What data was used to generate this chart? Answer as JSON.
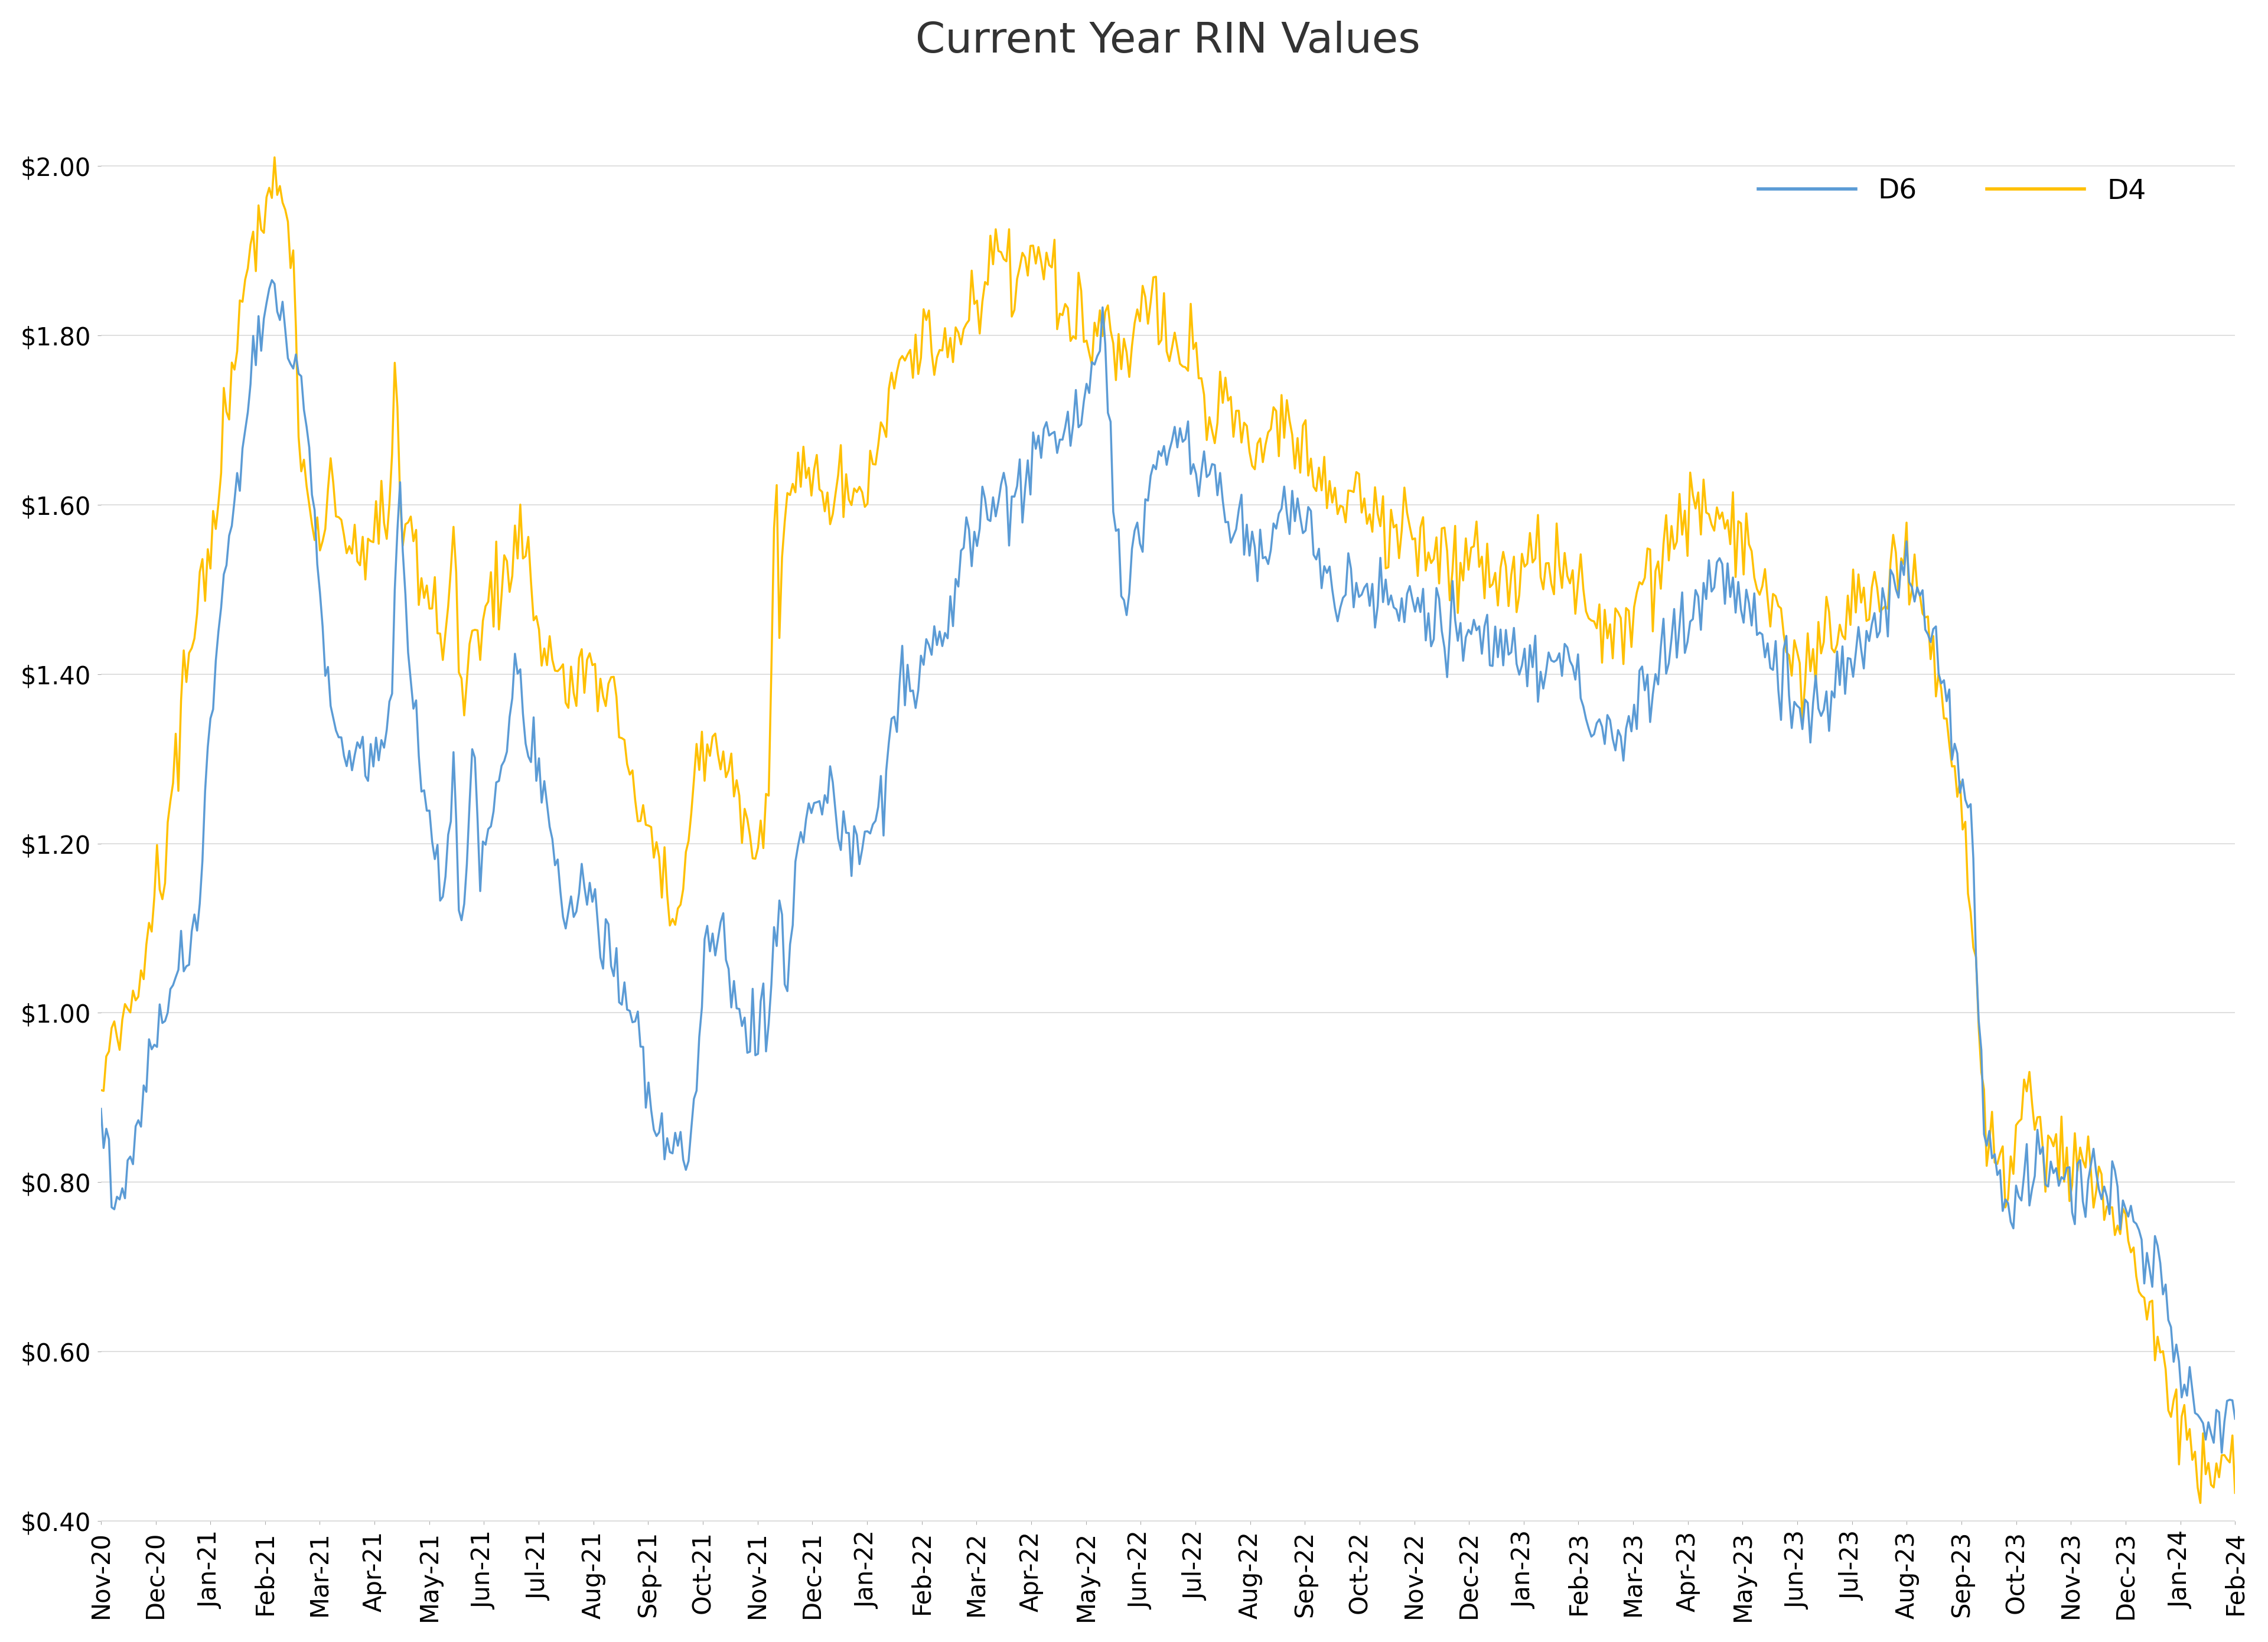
{
  "title": "Current Year RIN Values",
  "title_fontsize": 52,
  "line_d6_color": "#5B9BD5",
  "line_d4_color": "#FFC000",
  "line_width": 2.5,
  "ylim": [
    0.4,
    2.1
  ],
  "yticks": [
    0.4,
    0.6,
    0.8,
    1.0,
    1.2,
    1.4,
    1.6,
    1.8,
    2.0
  ],
  "background_color": "#FFFFFF",
  "grid_color": "#D9D9D9",
  "legend_labels": [
    "D6",
    "D4"
  ],
  "legend_fontsize": 34,
  "tick_fontsize": 30,
  "x_tick_labels": [
    "Nov-20",
    "Dec-20",
    "Jan-21",
    "Feb-21",
    "Mar-21",
    "Apr-21",
    "May-21",
    "Jun-21",
    "Jul-21",
    "Aug-21",
    "Sep-21",
    "Oct-21",
    "Nov-21",
    "Dec-21",
    "Jan-22",
    "Feb-22",
    "Mar-22",
    "Apr-22",
    "May-22",
    "Jun-22",
    "Jul-22",
    "Aug-22",
    "Sep-22",
    "Oct-22",
    "Nov-22",
    "Dec-22",
    "Jan-23",
    "Feb-23",
    "Mar-23",
    "Apr-23",
    "May-23",
    "Jun-23",
    "Jul-23",
    "Aug-23",
    "Sep-23",
    "Oct-23",
    "Nov-23",
    "Dec-23",
    "Jan-24",
    "Feb-24"
  ],
  "d6_waypoints": [
    [
      0,
      0.88
    ],
    [
      3,
      0.78
    ],
    [
      6,
      0.82
    ],
    [
      9,
      0.95
    ],
    [
      12,
      1.0
    ],
    [
      15,
      1.05
    ],
    [
      18,
      1.1
    ],
    [
      20,
      1.3
    ],
    [
      22,
      1.45
    ],
    [
      24,
      1.55
    ],
    [
      26,
      1.65
    ],
    [
      28,
      1.75
    ],
    [
      30,
      1.82
    ],
    [
      32,
      1.85
    ],
    [
      34,
      1.82
    ],
    [
      36,
      1.78
    ],
    [
      38,
      1.72
    ],
    [
      40,
      1.58
    ],
    [
      42,
      1.42
    ],
    [
      44,
      1.32
    ],
    [
      46,
      1.3
    ],
    [
      48,
      1.35
    ],
    [
      50,
      1.28
    ],
    [
      52,
      1.32
    ],
    [
      54,
      1.35
    ],
    [
      56,
      1.65
    ],
    [
      57,
      1.48
    ],
    [
      58,
      1.38
    ],
    [
      60,
      1.28
    ],
    [
      62,
      1.18
    ],
    [
      64,
      1.15
    ],
    [
      66,
      1.3
    ],
    [
      67,
      1.14
    ],
    [
      68,
      1.12
    ],
    [
      70,
      1.3
    ],
    [
      71,
      1.18
    ],
    [
      72,
      1.22
    ],
    [
      74,
      1.25
    ],
    [
      76,
      1.35
    ],
    [
      78,
      1.4
    ],
    [
      80,
      1.32
    ],
    [
      82,
      1.28
    ],
    [
      84,
      1.22
    ],
    [
      86,
      1.15
    ],
    [
      88,
      1.1
    ],
    [
      90,
      1.15
    ],
    [
      92,
      1.12
    ],
    [
      94,
      1.08
    ],
    [
      96,
      1.05
    ],
    [
      98,
      1.02
    ],
    [
      100,
      0.98
    ],
    [
      102,
      0.93
    ],
    [
      104,
      0.87
    ],
    [
      106,
      0.85
    ],
    [
      108,
      0.83
    ],
    [
      110,
      0.83
    ],
    [
      112,
      0.98
    ],
    [
      114,
      1.1
    ],
    [
      116,
      1.1
    ],
    [
      118,
      1.05
    ],
    [
      120,
      1.0
    ],
    [
      122,
      0.98
    ],
    [
      124,
      0.97
    ],
    [
      125,
      1.0
    ],
    [
      127,
      1.15
    ],
    [
      128,
      1.0
    ],
    [
      130,
      1.2
    ],
    [
      132,
      1.22
    ],
    [
      134,
      1.25
    ],
    [
      136,
      1.25
    ],
    [
      138,
      1.22
    ],
    [
      140,
      1.2
    ],
    [
      142,
      1.2
    ],
    [
      144,
      1.22
    ],
    [
      146,
      1.25
    ],
    [
      148,
      1.35
    ],
    [
      150,
      1.4
    ],
    [
      152,
      1.38
    ],
    [
      154,
      1.4
    ],
    [
      156,
      1.42
    ],
    [
      158,
      1.45
    ],
    [
      160,
      1.5
    ],
    [
      162,
      1.55
    ],
    [
      164,
      1.58
    ],
    [
      166,
      1.6
    ],
    [
      168,
      1.62
    ],
    [
      170,
      1.6
    ],
    [
      172,
      1.62
    ],
    [
      174,
      1.65
    ],
    [
      176,
      1.67
    ],
    [
      178,
      1.68
    ],
    [
      180,
      1.68
    ],
    [
      182,
      1.7
    ],
    [
      184,
      1.72
    ],
    [
      186,
      1.75
    ],
    [
      188,
      1.8
    ],
    [
      189,
      1.62
    ],
    [
      190,
      1.55
    ],
    [
      191,
      1.52
    ],
    [
      192,
      1.5
    ],
    [
      193,
      1.55
    ],
    [
      194,
      1.58
    ],
    [
      195,
      1.6
    ],
    [
      196,
      1.62
    ],
    [
      198,
      1.65
    ],
    [
      200,
      1.67
    ],
    [
      202,
      1.68
    ],
    [
      204,
      1.68
    ],
    [
      206,
      1.65
    ],
    [
      208,
      1.62
    ],
    [
      210,
      1.6
    ],
    [
      212,
      1.58
    ],
    [
      214,
      1.57
    ],
    [
      216,
      1.55
    ],
    [
      218,
      1.55
    ],
    [
      220,
      1.58
    ],
    [
      222,
      1.6
    ],
    [
      224,
      1.58
    ],
    [
      226,
      1.55
    ],
    [
      228,
      1.52
    ],
    [
      230,
      1.52
    ],
    [
      232,
      1.5
    ],
    [
      234,
      1.5
    ],
    [
      236,
      1.5
    ],
    [
      238,
      1.48
    ],
    [
      240,
      1.48
    ],
    [
      242,
      1.48
    ],
    [
      244,
      1.48
    ],
    [
      246,
      1.48
    ],
    [
      248,
      1.48
    ],
    [
      250,
      1.47
    ],
    [
      252,
      1.46
    ],
    [
      254,
      1.45
    ],
    [
      256,
      1.45
    ],
    [
      258,
      1.44
    ],
    [
      260,
      1.43
    ],
    [
      262,
      1.42
    ],
    [
      264,
      1.42
    ],
    [
      266,
      1.42
    ],
    [
      268,
      1.42
    ],
    [
      270,
      1.42
    ],
    [
      272,
      1.42
    ],
    [
      274,
      1.42
    ],
    [
      276,
      1.38
    ],
    [
      278,
      1.36
    ],
    [
      280,
      1.34
    ],
    [
      282,
      1.33
    ],
    [
      284,
      1.32
    ],
    [
      286,
      1.35
    ],
    [
      288,
      1.38
    ],
    [
      290,
      1.4
    ],
    [
      292,
      1.42
    ],
    [
      294,
      1.44
    ],
    [
      296,
      1.46
    ],
    [
      298,
      1.48
    ],
    [
      300,
      1.5
    ],
    [
      302,
      1.52
    ],
    [
      304,
      1.52
    ],
    [
      306,
      1.5
    ],
    [
      308,
      1.48
    ],
    [
      310,
      1.45
    ],
    [
      312,
      1.42
    ],
    [
      314,
      1.4
    ],
    [
      316,
      1.38
    ],
    [
      318,
      1.36
    ],
    [
      320,
      1.35
    ],
    [
      322,
      1.36
    ],
    [
      324,
      1.38
    ],
    [
      326,
      1.4
    ],
    [
      328,
      1.42
    ],
    [
      330,
      1.45
    ],
    [
      332,
      1.48
    ],
    [
      334,
      1.5
    ],
    [
      336,
      1.52
    ],
    [
      338,
      1.5
    ],
    [
      340,
      1.48
    ],
    [
      342,
      1.45
    ],
    [
      344,
      1.4
    ],
    [
      346,
      1.35
    ],
    [
      348,
      1.3
    ],
    [
      350,
      1.2
    ],
    [
      351,
      1.0
    ],
    [
      352,
      0.88
    ],
    [
      354,
      0.82
    ],
    [
      356,
      0.78
    ],
    [
      358,
      0.78
    ],
    [
      360,
      0.82
    ],
    [
      362,
      0.83
    ],
    [
      364,
      0.82
    ],
    [
      366,
      0.8
    ],
    [
      368,
      0.8
    ],
    [
      370,
      0.8
    ],
    [
      372,
      0.8
    ],
    [
      374,
      0.8
    ],
    [
      376,
      0.78
    ],
    [
      378,
      0.76
    ],
    [
      380,
      0.74
    ],
    [
      382,
      0.72
    ],
    [
      384,
      0.7
    ],
    [
      386,
      0.65
    ],
    [
      388,
      0.6
    ],
    [
      390,
      0.55
    ],
    [
      392,
      0.52
    ],
    [
      394,
      0.52
    ],
    [
      396,
      0.52
    ],
    [
      399,
      0.52
    ]
  ],
  "d4_waypoints": [
    [
      0,
      0.93
    ],
    [
      2,
      0.95
    ],
    [
      4,
      1.0
    ],
    [
      6,
      1.02
    ],
    [
      8,
      1.05
    ],
    [
      10,
      1.15
    ],
    [
      12,
      1.2
    ],
    [
      14,
      1.3
    ],
    [
      16,
      1.42
    ],
    [
      18,
      1.48
    ],
    [
      20,
      1.5
    ],
    [
      22,
      1.6
    ],
    [
      24,
      1.72
    ],
    [
      26,
      1.82
    ],
    [
      28,
      1.9
    ],
    [
      30,
      1.95
    ],
    [
      32,
      1.98
    ],
    [
      33,
      2.0
    ],
    [
      34,
      1.97
    ],
    [
      36,
      1.88
    ],
    [
      37,
      1.72
    ],
    [
      38,
      1.65
    ],
    [
      40,
      1.55
    ],
    [
      42,
      1.6
    ],
    [
      44,
      1.65
    ],
    [
      46,
      1.55
    ],
    [
      48,
      1.55
    ],
    [
      50,
      1.55
    ],
    [
      52,
      1.57
    ],
    [
      54,
      1.6
    ],
    [
      55,
      1.8
    ],
    [
      56,
      1.58
    ],
    [
      57,
      1.55
    ],
    [
      58,
      1.55
    ],
    [
      60,
      1.52
    ],
    [
      62,
      1.48
    ],
    [
      64,
      1.42
    ],
    [
      66,
      1.55
    ],
    [
      67,
      1.38
    ],
    [
      68,
      1.38
    ],
    [
      70,
      1.45
    ],
    [
      71,
      1.4
    ],
    [
      72,
      1.48
    ],
    [
      74,
      1.55
    ],
    [
      76,
      1.52
    ],
    [
      78,
      1.55
    ],
    [
      80,
      1.52
    ],
    [
      82,
      1.45
    ],
    [
      84,
      1.42
    ],
    [
      86,
      1.4
    ],
    [
      88,
      1.38
    ],
    [
      90,
      1.42
    ],
    [
      92,
      1.4
    ],
    [
      94,
      1.38
    ],
    [
      96,
      1.35
    ],
    [
      98,
      1.3
    ],
    [
      100,
      1.25
    ],
    [
      102,
      1.22
    ],
    [
      104,
      1.18
    ],
    [
      106,
      1.15
    ],
    [
      108,
      1.12
    ],
    [
      110,
      1.2
    ],
    [
      112,
      1.35
    ],
    [
      114,
      1.3
    ],
    [
      116,
      1.3
    ],
    [
      118,
      1.28
    ],
    [
      120,
      1.22
    ],
    [
      122,
      1.2
    ],
    [
      124,
      1.22
    ],
    [
      125,
      1.3
    ],
    [
      126,
      1.62
    ],
    [
      127,
      1.45
    ],
    [
      128,
      1.6
    ],
    [
      130,
      1.62
    ],
    [
      132,
      1.65
    ],
    [
      134,
      1.62
    ],
    [
      136,
      1.62
    ],
    [
      138,
      1.6
    ],
    [
      140,
      1.6
    ],
    [
      142,
      1.62
    ],
    [
      144,
      1.65
    ],
    [
      146,
      1.68
    ],
    [
      148,
      1.72
    ],
    [
      150,
      1.75
    ],
    [
      152,
      1.78
    ],
    [
      154,
      1.8
    ],
    [
      156,
      1.78
    ],
    [
      158,
      1.78
    ],
    [
      160,
      1.8
    ],
    [
      162,
      1.82
    ],
    [
      164,
      1.85
    ],
    [
      166,
      1.88
    ],
    [
      168,
      1.9
    ],
    [
      170,
      1.88
    ],
    [
      172,
      1.88
    ],
    [
      174,
      1.88
    ],
    [
      176,
      1.88
    ],
    [
      178,
      1.88
    ],
    [
      180,
      1.85
    ],
    [
      182,
      1.82
    ],
    [
      184,
      1.8
    ],
    [
      186,
      1.82
    ],
    [
      188,
      1.85
    ],
    [
      189,
      1.78
    ],
    [
      190,
      1.78
    ],
    [
      191,
      1.78
    ],
    [
      192,
      1.78
    ],
    [
      193,
      1.8
    ],
    [
      194,
      1.82
    ],
    [
      195,
      1.82
    ],
    [
      196,
      1.82
    ],
    [
      198,
      1.82
    ],
    [
      200,
      1.8
    ],
    [
      202,
      1.78
    ],
    [
      204,
      1.78
    ],
    [
      206,
      1.75
    ],
    [
      208,
      1.73
    ],
    [
      210,
      1.72
    ],
    [
      212,
      1.7
    ],
    [
      214,
      1.68
    ],
    [
      216,
      1.67
    ],
    [
      218,
      1.67
    ],
    [
      220,
      1.68
    ],
    [
      222,
      1.7
    ],
    [
      224,
      1.68
    ],
    [
      226,
      1.65
    ],
    [
      228,
      1.62
    ],
    [
      230,
      1.6
    ],
    [
      232,
      1.6
    ],
    [
      234,
      1.6
    ],
    [
      236,
      1.6
    ],
    [
      238,
      1.58
    ],
    [
      240,
      1.58
    ],
    [
      242,
      1.57
    ],
    [
      244,
      1.57
    ],
    [
      246,
      1.57
    ],
    [
      248,
      1.56
    ],
    [
      250,
      1.56
    ],
    [
      252,
      1.55
    ],
    [
      254,
      1.54
    ],
    [
      256,
      1.54
    ],
    [
      258,
      1.53
    ],
    [
      260,
      1.52
    ],
    [
      262,
      1.52
    ],
    [
      264,
      1.52
    ],
    [
      266,
      1.52
    ],
    [
      268,
      1.52
    ],
    [
      270,
      1.52
    ],
    [
      272,
      1.52
    ],
    [
      274,
      1.52
    ],
    [
      276,
      1.5
    ],
    [
      278,
      1.48
    ],
    [
      280,
      1.46
    ],
    [
      282,
      1.45
    ],
    [
      284,
      1.44
    ],
    [
      286,
      1.47
    ],
    [
      288,
      1.5
    ],
    [
      290,
      1.52
    ],
    [
      292,
      1.55
    ],
    [
      294,
      1.57
    ],
    [
      296,
      1.58
    ],
    [
      298,
      1.6
    ],
    [
      300,
      1.6
    ],
    [
      302,
      1.58
    ],
    [
      304,
      1.57
    ],
    [
      306,
      1.55
    ],
    [
      308,
      1.53
    ],
    [
      310,
      1.5
    ],
    [
      312,
      1.48
    ],
    [
      314,
      1.46
    ],
    [
      316,
      1.44
    ],
    [
      318,
      1.42
    ],
    [
      320,
      1.42
    ],
    [
      322,
      1.43
    ],
    [
      324,
      1.44
    ],
    [
      326,
      1.45
    ],
    [
      328,
      1.47
    ],
    [
      330,
      1.48
    ],
    [
      332,
      1.5
    ],
    [
      334,
      1.52
    ],
    [
      336,
      1.55
    ],
    [
      338,
      1.52
    ],
    [
      340,
      1.48
    ],
    [
      342,
      1.44
    ],
    [
      344,
      1.38
    ],
    [
      346,
      1.32
    ],
    [
      348,
      1.25
    ],
    [
      350,
      1.1
    ],
    [
      351,
      0.98
    ],
    [
      352,
      0.9
    ],
    [
      353,
      0.85
    ],
    [
      354,
      0.82
    ],
    [
      356,
      0.82
    ],
    [
      358,
      0.83
    ],
    [
      359,
      0.92
    ],
    [
      360,
      0.98
    ],
    [
      361,
      0.9
    ],
    [
      362,
      0.85
    ],
    [
      364,
      0.84
    ],
    [
      366,
      0.83
    ],
    [
      368,
      0.82
    ],
    [
      370,
      0.82
    ],
    [
      372,
      0.82
    ],
    [
      374,
      0.8
    ],
    [
      376,
      0.78
    ],
    [
      378,
      0.75
    ],
    [
      380,
      0.72
    ],
    [
      382,
      0.68
    ],
    [
      384,
      0.63
    ],
    [
      386,
      0.58
    ],
    [
      388,
      0.53
    ],
    [
      390,
      0.5
    ],
    [
      392,
      0.48
    ],
    [
      394,
      0.48
    ],
    [
      396,
      0.47
    ],
    [
      399,
      0.46
    ]
  ]
}
